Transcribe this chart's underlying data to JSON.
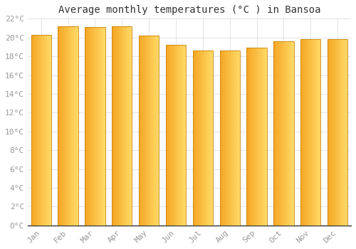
{
  "title": "Average monthly temperatures (°C ) in Bansoa",
  "months": [
    "Jan",
    "Feb",
    "Mar",
    "Apr",
    "May",
    "Jun",
    "Jul",
    "Aug",
    "Sep",
    "Oct",
    "Nov",
    "Dec"
  ],
  "values": [
    20.3,
    21.2,
    21.1,
    21.2,
    20.2,
    19.2,
    18.6,
    18.6,
    18.9,
    19.6,
    19.8,
    19.8
  ],
  "bar_color_left": "#F5A623",
  "bar_color_right": "#FFD966",
  "bar_edge_color": "#C8820A",
  "ylim": [
    0,
    22
  ],
  "yticks": [
    0,
    2,
    4,
    6,
    8,
    10,
    12,
    14,
    16,
    18,
    20,
    22
  ],
  "ytick_labels": [
    "0°C",
    "2°C",
    "4°C",
    "6°C",
    "8°C",
    "10°C",
    "12°C",
    "14°C",
    "16°C",
    "18°C",
    "20°C",
    "22°C"
  ],
  "background_color": "#FFFFFF",
  "plot_bg_color": "#FFFFFF",
  "grid_color": "#DDDDDD",
  "title_fontsize": 10,
  "tick_fontsize": 8,
  "tick_color": "#999999",
  "bar_width": 0.75,
  "n_gradient_bands": 20
}
